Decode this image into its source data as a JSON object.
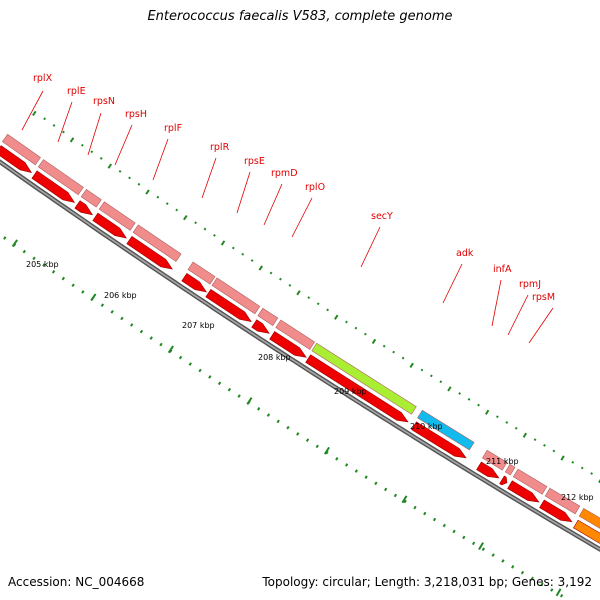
{
  "header": {
    "title": "Enterococcus faecalis V583, complete genome"
  },
  "footer": {
    "accession": "Accession: NC_004668",
    "summary": "Topology: circular; Length: 3,218,031 bp; Genes: 3,192"
  },
  "colors": {
    "ribosomal_light": "#f08c8c",
    "ribosomal_dark": "#ee0000",
    "secY": "#aaee33",
    "adk": "#11bbee",
    "orange_gene": "#ff8800",
    "backbone": "#808080",
    "ticks": "#228822",
    "label": "#e00000"
  },
  "scale_labels": [
    "205 kbp",
    "206 kbp",
    "207 kbp",
    "208 kbp",
    "209 kbp",
    "210 kbp",
    "211 kbp",
    "212 kbp"
  ],
  "gene_labels": [
    "rplX",
    "rplE",
    "rpsN",
    "rpsH",
    "rplF",
    "rplR",
    "rpsE",
    "rpmD",
    "rplO",
    "secY",
    "adk",
    "infA",
    "rpmJ",
    "rpsM"
  ]
}
